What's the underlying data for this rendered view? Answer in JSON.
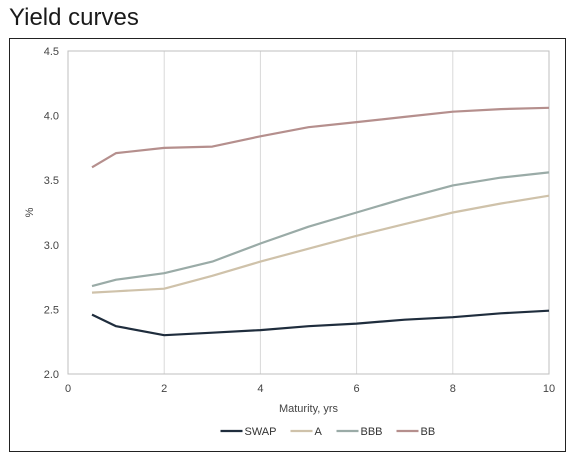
{
  "title": "Yield curves",
  "chart_data": {
    "type": "line",
    "title": "Yield curves",
    "xlabel": "Maturity, yrs",
    "ylabel": "%",
    "xlim": [
      0,
      10
    ],
    "ylim": [
      2.0,
      4.5
    ],
    "xticks": [
      0,
      2,
      4,
      6,
      8,
      10
    ],
    "yticks": [
      "2.0",
      "2.5",
      "3.0",
      "3.5",
      "4.0",
      "4.5"
    ],
    "grid": "vertical",
    "legend": "bottom",
    "series": [
      {
        "name": "SWAP",
        "color": "#1f2d3d",
        "x": [
          0.5,
          1,
          2,
          3,
          4,
          5,
          6,
          7,
          8,
          9,
          10
        ],
        "y": [
          2.46,
          2.37,
          2.3,
          2.32,
          2.34,
          2.37,
          2.39,
          2.42,
          2.44,
          2.47,
          2.49
        ]
      },
      {
        "name": "A",
        "color": "#cfc2aa",
        "x": [
          0.5,
          1,
          2,
          3,
          4,
          5,
          6,
          7,
          8,
          9,
          10
        ],
        "y": [
          2.63,
          2.64,
          2.66,
          2.76,
          2.87,
          2.97,
          3.07,
          3.16,
          3.25,
          3.32,
          3.38
        ]
      },
      {
        "name": "BBB",
        "color": "#9aaba7",
        "x": [
          0.5,
          1,
          2,
          3,
          4,
          5,
          6,
          7,
          8,
          9,
          10
        ],
        "y": [
          2.68,
          2.73,
          2.78,
          2.87,
          3.01,
          3.14,
          3.25,
          3.36,
          3.46,
          3.52,
          3.56
        ]
      },
      {
        "name": "BB",
        "color": "#b58f8d",
        "x": [
          0.5,
          1,
          2,
          3,
          4,
          5,
          6,
          7,
          8,
          9,
          10
        ],
        "y": [
          3.6,
          3.71,
          3.75,
          3.76,
          3.84,
          3.91,
          3.95,
          3.99,
          4.03,
          4.05,
          4.06
        ]
      }
    ]
  }
}
